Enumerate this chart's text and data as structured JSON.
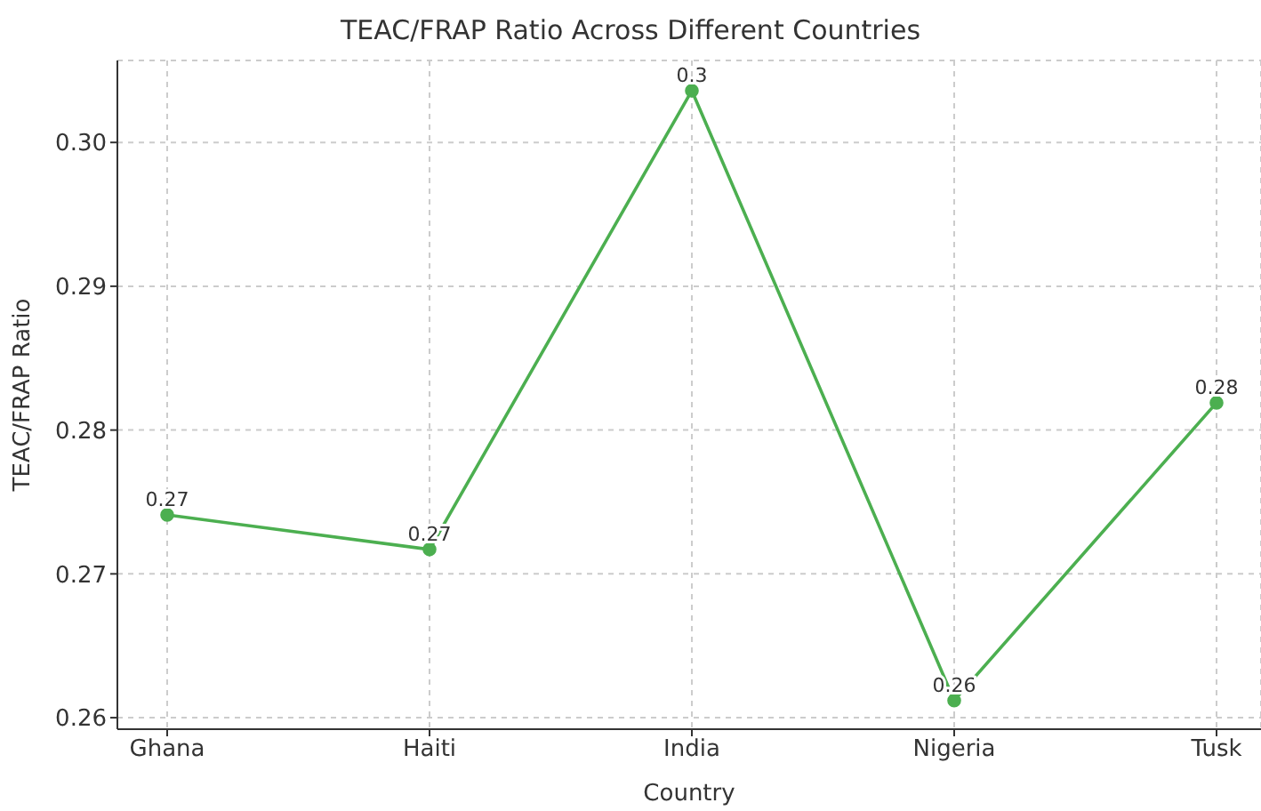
{
  "chart_data": {
    "type": "line",
    "title": "TEAC/FRAP Ratio Across Different Countries",
    "xlabel": "Country",
    "ylabel": "TEAC/FRAP Ratio",
    "categories": [
      "Ghana",
      "Haiti",
      "India",
      "Nigeria",
      "Tusk"
    ],
    "series": [
      {
        "color": "#4caf50",
        "values": [
          0.2741,
          0.2717,
          0.3036,
          0.2612,
          0.2819
        ],
        "value_labels": [
          "0.27",
          "0.27",
          "0.3",
          "0.26",
          "0.28"
        ]
      }
    ],
    "ylim": [
      0.2592,
      0.3057
    ],
    "yticks": [
      {
        "value": 0.26,
        "label": "0.26"
      },
      {
        "value": 0.27,
        "label": "0.27"
      },
      {
        "value": 0.28,
        "label": "0.28"
      },
      {
        "value": 0.29,
        "label": "0.29"
      },
      {
        "value": 0.3,
        "label": "0.30"
      }
    ],
    "grid": true,
    "marker": "circle",
    "line_style": "solid"
  }
}
